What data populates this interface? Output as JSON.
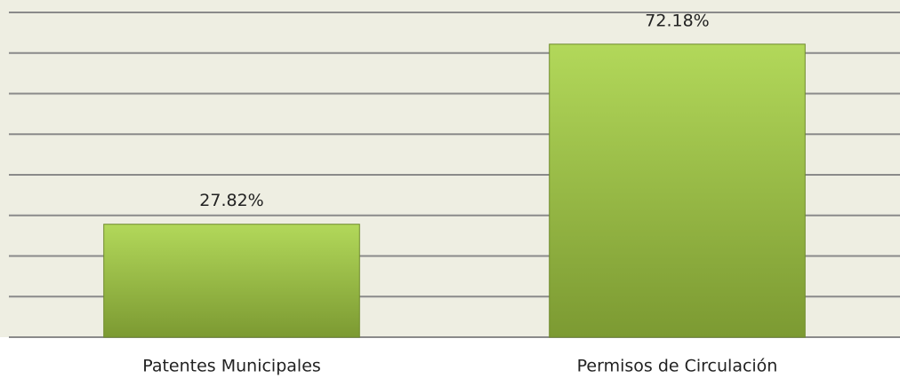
{
  "chart_data": {
    "type": "bar",
    "categories": [
      "Patentes Municipales",
      "Permisos de Circulación"
    ],
    "values": [
      27.82,
      72.18
    ],
    "value_labels": [
      "27.82%",
      "72.18%"
    ],
    "color": "#8db43e",
    "ylim": [
      0,
      80
    ],
    "yticks": [
      0,
      10,
      20,
      30,
      40,
      50,
      60,
      70,
      80
    ],
    "grid": true
  }
}
